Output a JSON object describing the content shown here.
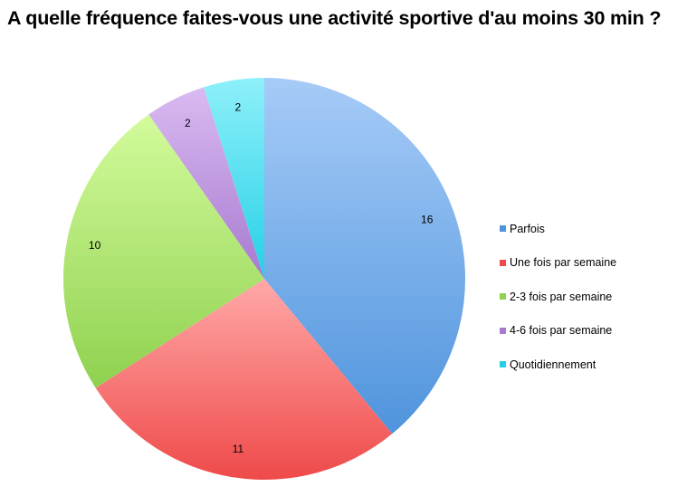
{
  "chart_data": {
    "type": "pie",
    "title": "A quelle fréquence faites-vous une activité sportive d'au moins 30 min ?",
    "categories": [
      "Parfois",
      "Une fois par semaine",
      "2-3 fois par semaine",
      "4-6 fois par semaine",
      "Quotidiennement"
    ],
    "values": [
      16,
      11,
      10,
      2,
      2
    ],
    "colors": [
      "#4f94dd",
      "#ef4a4a",
      "#8fd14f",
      "#a77ad0",
      "#25d0e6"
    ],
    "light_colors": [
      "#a6cbf7",
      "#ffa9a8",
      "#d3fb9c",
      "#dabaf1",
      "#8ef0fa"
    ],
    "start_angle_deg": 0,
    "direction": "clockwise",
    "legend_position": "right"
  }
}
